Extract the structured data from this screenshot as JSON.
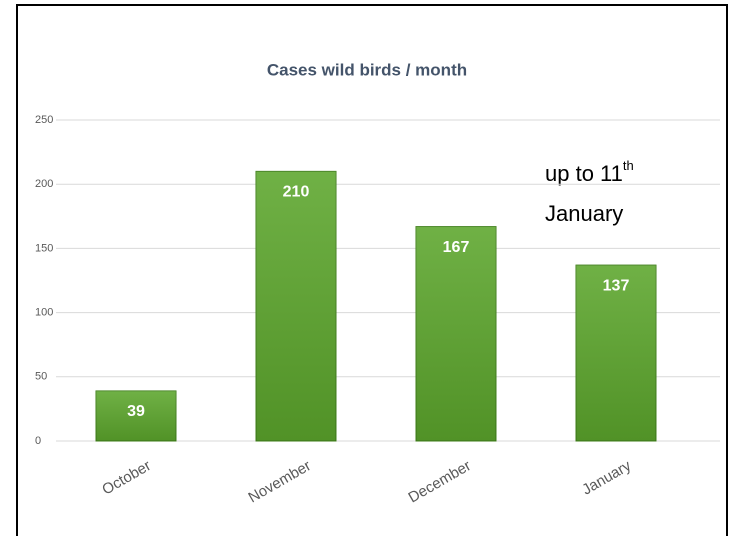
{
  "chart_data": {
    "type": "bar",
    "title": "Cases wild birds / month",
    "categories": [
      "October",
      "November",
      "December",
      "January"
    ],
    "values": [
      39,
      210,
      167,
      137
    ],
    "color": "#5ca62c",
    "ylim": [
      0,
      250
    ],
    "yticks": [
      0,
      50,
      100,
      150,
      200,
      250
    ],
    "grid": true,
    "annotation": {
      "text": "up to 11",
      "sup": "th",
      "text2": "January"
    }
  }
}
